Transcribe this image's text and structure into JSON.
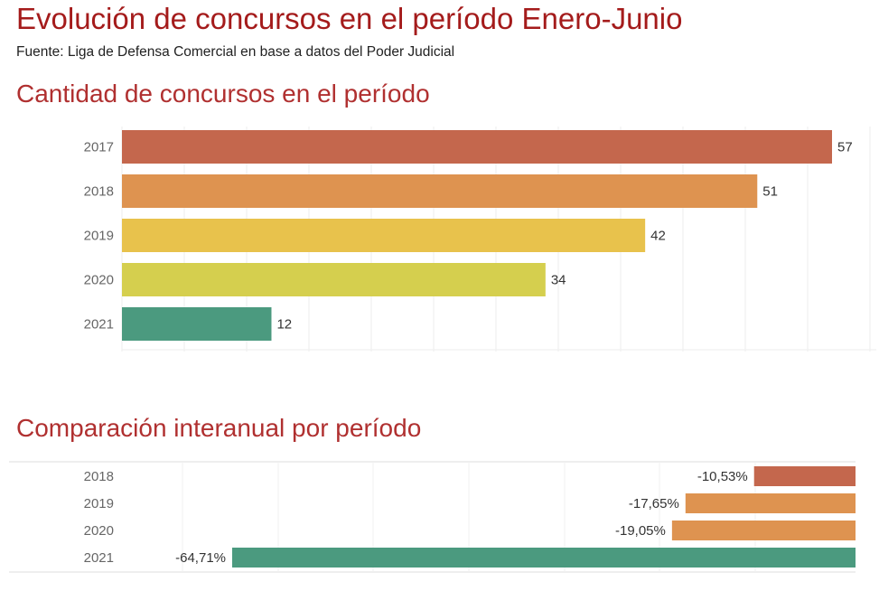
{
  "title": "Evolución de concursos en el período Enero-Junio",
  "source": "Fuente: Liga de Defensa Comercial en base a datos del Poder Judicial",
  "chart_data": [
    {
      "type": "bar",
      "orientation": "horizontal",
      "title": "Cantidad de concursos en el período",
      "categories": [
        "2017",
        "2018",
        "2019",
        "2020",
        "2021"
      ],
      "values": [
        57,
        51,
        42,
        34,
        12
      ],
      "labels": [
        "57",
        "51",
        "42",
        "34",
        "12"
      ],
      "colors": [
        "#c4674d",
        "#de9350",
        "#e8c24c",
        "#d5cf4e",
        "#4b9a7f"
      ],
      "xlim": [
        0,
        57
      ],
      "grid": true
    },
    {
      "type": "bar",
      "orientation": "horizontal",
      "title": "Comparación interanual por período",
      "categories": [
        "2018",
        "2019",
        "2020",
        "2021"
      ],
      "values": [
        -10.53,
        -17.65,
        -19.05,
        -64.71
      ],
      "labels": [
        "-10,53%",
        "-17,65%",
        "-19,05%",
        "-64,71%"
      ],
      "colors": [
        "#c4674d",
        "#de9350",
        "#de9350",
        "#4b9a7f"
      ],
      "xlim": [
        -64.71,
        0
      ],
      "grid": true
    }
  ]
}
